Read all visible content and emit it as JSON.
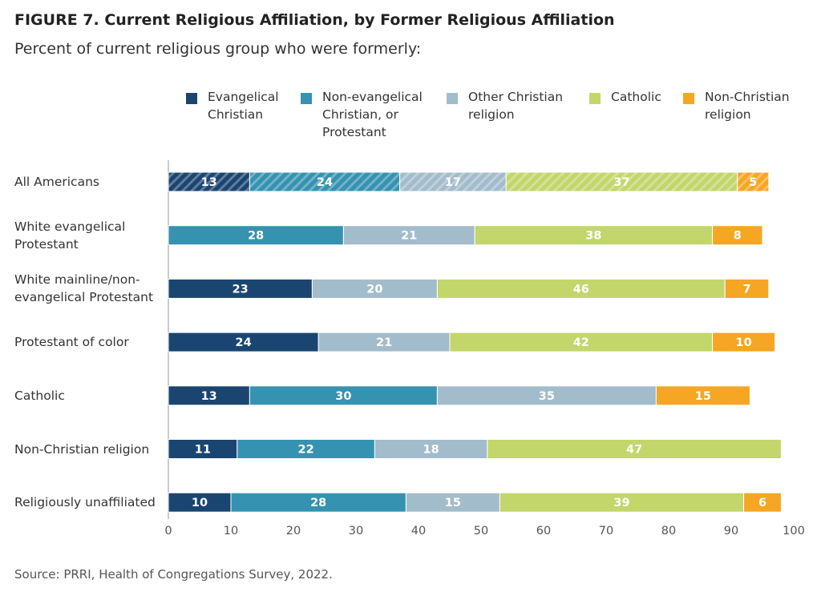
{
  "chart_data": {
    "type": "stacked-barh",
    "title": "FIGURE 7.  Current Religious Affiliation, by Former Religious Affiliation",
    "subtitle": "Percent of current religious group who were formerly:",
    "source": "Source: PRRI, Health of Congregations Survey, 2022.",
    "categories": [
      "All Americans",
      "White evangelical Protestant",
      "White mainline/non-evangelical Protestant",
      "Protestant of color",
      "Catholic",
      "Non-Christian religion",
      "Religiously unaffiliated"
    ],
    "series": [
      {
        "name": "Evangelical Christian",
        "color": "#1b4571",
        "values": [
          13,
          null,
          23,
          24,
          13,
          11,
          10
        ]
      },
      {
        "name": "Non-evangelical Christian, or Protestant",
        "color": "#3592b0",
        "values": [
          24,
          28,
          null,
          null,
          30,
          22,
          28
        ]
      },
      {
        "name": "Other Christian religion",
        "color": "#a3bccb",
        "values": [
          17,
          21,
          20,
          21,
          35,
          18,
          15
        ]
      },
      {
        "name": "Catholic",
        "color": "#c2d66b",
        "values": [
          37,
          38,
          46,
          42,
          null,
          47,
          39
        ]
      },
      {
        "name": "Non-Christian religion",
        "color": "#f5a623",
        "values": [
          5,
          8,
          7,
          10,
          15,
          null,
          6
        ]
      }
    ],
    "xlim": [
      0,
      100
    ],
    "xticks": [
      0,
      10,
      20,
      30,
      40,
      50,
      60,
      70,
      80,
      90,
      100
    ],
    "grid": false
  }
}
